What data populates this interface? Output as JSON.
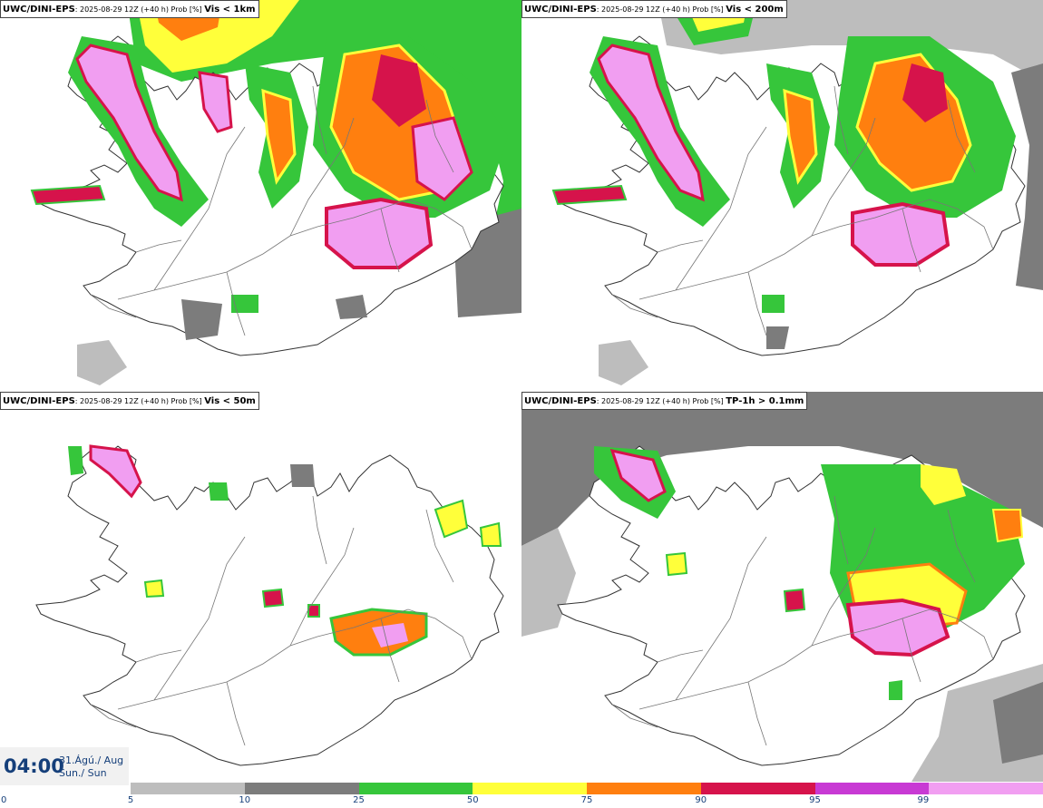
{
  "panels": [
    {
      "model": "UWC/DINI-EPS",
      "meta": ": 2025-08-29 12Z (+40 h) Prob [%] ",
      "variable": "Vis < 1km"
    },
    {
      "model": "UWC/DINI-EPS",
      "meta": ": 2025-08-29 12Z (+40 h) Prob [%] ",
      "variable": "Vis < 200m"
    },
    {
      "model": "UWC/DINI-EPS",
      "meta": ": 2025-08-29 12Z (+40 h) Prob [%] ",
      "variable": "Vis < 50m"
    },
    {
      "model": "UWC/DINI-EPS",
      "meta": ": 2025-08-29 12Z (+40 h) Prob [%] ",
      "variable": "TP-1h > 0.1mm"
    }
  ],
  "time": {
    "hour": "04:00",
    "date": "31.Ágú./ Aug",
    "day": "Sun./ Sun"
  },
  "legend": {
    "ticks": [
      "0",
      "5",
      "10",
      "25",
      "50",
      "75",
      "90",
      "95",
      "99"
    ],
    "colors": [
      "#bdbdbd",
      "#7c7c7c",
      "#36c63b",
      "#ffff3a",
      "#ff7f0f",
      "#d6134b",
      "#c83ad4",
      "#f19ef1"
    ]
  },
  "map_colors": {
    "coast": "#333333",
    "roads": "#777777",
    "p5": "#bdbdbd",
    "p10": "#7c7c7c",
    "p25": "#36c63b",
    "p50": "#ffff3a",
    "p75": "#ff7f0f",
    "p90": "#d6134b",
    "p95": "#c83ad4",
    "p99": "#f19ef1"
  }
}
